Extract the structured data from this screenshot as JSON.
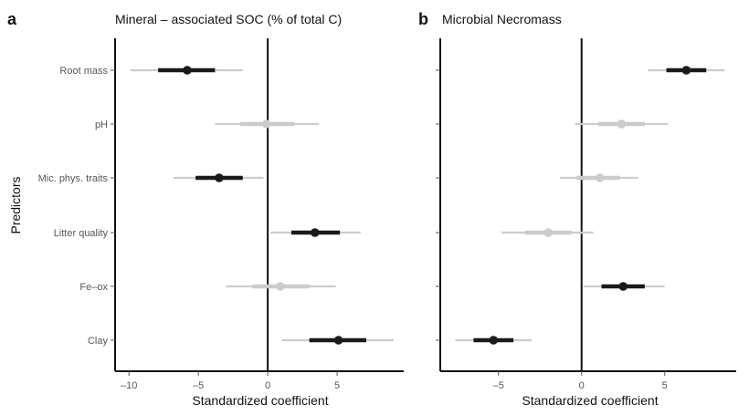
{
  "chart_data": {
    "type": "scatter",
    "ylabel": "Predictors",
    "categories": [
      "Root mass",
      "pH",
      "Mic. phys. traits",
      "Litter quality",
      "Fe–ox",
      "Clay"
    ],
    "colors": {
      "significant": "#1a1a1a",
      "not_significant": "#cccccc"
    },
    "panels": [
      {
        "letter": "a",
        "title": "Mineral – associated SOC (% of total C)",
        "xlabel": "Standardized coefficient",
        "xlim": [
          -11.0,
          9.8
        ],
        "xticks": [
          -10,
          -5,
          0,
          5
        ],
        "xtick_labels": [
          "–10",
          "–5",
          "0",
          "5"
        ],
        "y_ticks_labeled": true,
        "points": [
          {
            "predictor": "Root mass",
            "estimate": -5.8,
            "inner": [
              -7.9,
              -3.8
            ],
            "outer": [
              -9.9,
              -1.8
            ],
            "significant": true
          },
          {
            "predictor": "pH",
            "estimate": -0.1,
            "inner": [
              -2.0,
              1.9
            ],
            "outer": [
              -3.8,
              3.7
            ],
            "significant": false
          },
          {
            "predictor": "Mic. phys. traits",
            "estimate": -3.5,
            "inner": [
              -5.2,
              -1.8
            ],
            "outer": [
              -6.8,
              -0.3
            ],
            "significant": true
          },
          {
            "predictor": "Litter quality",
            "estimate": 3.4,
            "inner": [
              1.7,
              5.2
            ],
            "outer": [
              0.2,
              6.7
            ],
            "significant": true
          },
          {
            "predictor": "Fe–ox",
            "estimate": 0.9,
            "inner": [
              -1.1,
              3.0
            ],
            "outer": [
              -3.0,
              4.9
            ],
            "significant": false
          },
          {
            "predictor": "Clay",
            "estimate": 5.1,
            "inner": [
              3.0,
              7.1
            ],
            "outer": [
              1.0,
              9.1
            ],
            "significant": true
          }
        ]
      },
      {
        "letter": "b",
        "title": "Microbial Necromass",
        "xlabel": "Standardized coefficient",
        "xlim": [
          -8.5,
          9.3
        ],
        "xticks": [
          -5,
          0,
          5
        ],
        "xtick_labels": [
          "–5",
          "0",
          "5"
        ],
        "y_ticks_labeled": false,
        "points": [
          {
            "predictor": "Root mass",
            "estimate": 6.3,
            "inner": [
              5.1,
              7.5
            ],
            "outer": [
              4.0,
              8.6
            ],
            "significant": true
          },
          {
            "predictor": "pH",
            "estimate": 2.4,
            "inner": [
              1.0,
              3.8
            ],
            "outer": [
              -0.4,
              5.2
            ],
            "significant": false
          },
          {
            "predictor": "Mic. phys. traits",
            "estimate": 1.1,
            "inner": [
              -0.3,
              2.3
            ],
            "outer": [
              -1.3,
              3.4
            ],
            "significant": false
          },
          {
            "predictor": "Litter quality",
            "estimate": -2.0,
            "inner": [
              -3.4,
              -0.6
            ],
            "outer": [
              -4.8,
              0.7
            ],
            "significant": false
          },
          {
            "predictor": "Fe–ox",
            "estimate": 2.5,
            "inner": [
              1.2,
              3.8
            ],
            "outer": [
              0.1,
              5.0
            ],
            "significant": true
          },
          {
            "predictor": "Clay",
            "estimate": -5.3,
            "inner": [
              -6.5,
              -4.1
            ],
            "outer": [
              -7.6,
              -3.0
            ],
            "significant": true
          }
        ]
      }
    ]
  }
}
